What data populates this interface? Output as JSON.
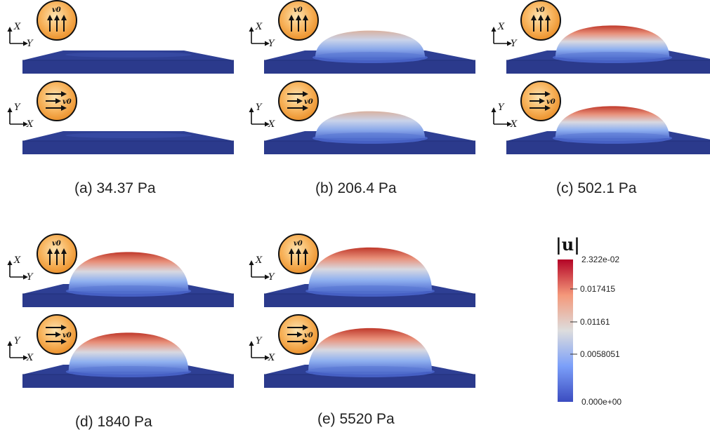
{
  "panels": [
    {
      "id": "a",
      "caption": "(a) 34.37 Pa",
      "dome_level": 0.0
    },
    {
      "id": "b",
      "caption": "(b) 206.4 Pa",
      "dome_level": 0.45
    },
    {
      "id": "c",
      "caption": "(c) 502.1 Pa",
      "dome_level": 0.62
    },
    {
      "id": "d",
      "caption": "(d) 1840 Pa",
      "dome_level": 0.85
    },
    {
      "id": "e",
      "caption": "(e) 5520 Pa",
      "dome_level": 1.0
    }
  ],
  "views": {
    "top": {
      "axis_vertical": "X",
      "axis_horizontal": "Y",
      "flow_direction": "up"
    },
    "bottom": {
      "axis_vertical": "Y",
      "axis_horizontal": "X",
      "flow_direction": "right"
    }
  },
  "velocity_label": "v0",
  "colorbar": {
    "title": "|u|",
    "max_label": "2.322e-02",
    "ticks": [
      "0.017415",
      "0.01161",
      "0.0058051"
    ],
    "min_label": "0.000e+00",
    "colors": [
      "#b40426",
      "#f4987a",
      "#dddddd",
      "#7b9ff9",
      "#3b4cc0"
    ]
  }
}
